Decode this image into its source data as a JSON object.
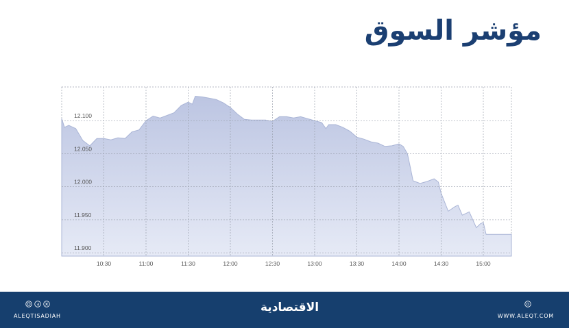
{
  "title": "مؤشر السوق",
  "chart_data": {
    "type": "area",
    "title": "مؤشر السوق",
    "xlabel": "",
    "ylabel": "",
    "ylim": [
      11.895,
      12.151
    ],
    "xlim": [
      "10:00",
      "15:20"
    ],
    "grid": true,
    "fill_color": "#c5cde6",
    "line_color": "#aab5d6",
    "x_ticks": [
      "10:30",
      "11:00",
      "11:30",
      "12:00",
      "12:30",
      "13:00",
      "13:30",
      "14:00",
      "14:30",
      "15:00"
    ],
    "y_ticks": [
      "11.900",
      "11.950",
      "12.000",
      "12.050",
      "12.100"
    ],
    "x": [
      "10:00",
      "10:02",
      "10:05",
      "10:10",
      "10:15",
      "10:20",
      "10:25",
      "10:30",
      "10:35",
      "10:40",
      "10:45",
      "10:50",
      "10:55",
      "11:00",
      "11:05",
      "11:10",
      "11:15",
      "11:20",
      "11:25",
      "11:30",
      "11:33",
      "11:35",
      "11:40",
      "11:45",
      "11:50",
      "11:55",
      "12:00",
      "12:05",
      "12:10",
      "12:15",
      "12:20",
      "12:25",
      "12:30",
      "12:35",
      "12:40",
      "12:45",
      "12:50",
      "12:55",
      "13:00",
      "13:05",
      "13:08",
      "13:10",
      "13:15",
      "13:20",
      "13:25",
      "13:30",
      "13:35",
      "13:40",
      "13:45",
      "13:50",
      "13:55",
      "14:00",
      "14:03",
      "14:06",
      "14:08",
      "14:10",
      "14:15",
      "14:20",
      "14:25",
      "14:28",
      "14:30",
      "14:35",
      "14:40",
      "14:42",
      "14:45",
      "14:50",
      "14:55",
      "14:58",
      "15:00",
      "15:02",
      "15:20"
    ],
    "values": [
      12.103,
      12.09,
      12.093,
      12.088,
      12.07,
      12.062,
      12.073,
      12.073,
      12.071,
      12.074,
      12.073,
      12.083,
      12.086,
      12.1,
      12.107,
      12.104,
      12.108,
      12.112,
      12.123,
      12.128,
      12.125,
      12.137,
      12.136,
      12.134,
      12.132,
      12.127,
      12.12,
      12.11,
      12.102,
      12.101,
      12.101,
      12.101,
      12.099,
      12.106,
      12.106,
      12.104,
      12.106,
      12.103,
      12.1,
      12.097,
      12.088,
      12.094,
      12.094,
      12.09,
      12.084,
      12.075,
      12.072,
      12.068,
      12.066,
      12.061,
      12.062,
      12.065,
      12.061,
      12.05,
      12.03,
      12.009,
      12.005,
      12.008,
      12.012,
      12.007,
      11.99,
      11.963,
      11.97,
      11.972,
      11.957,
      11.962,
      11.938,
      11.944,
      11.946,
      11.928,
      11.928
    ]
  },
  "footer": {
    "background": "#163f6e",
    "handle": "ALEQTISADIAH",
    "logo": "الاقتصادية",
    "website": "WWW.ALEQT.COM",
    "social_icons": [
      "instagram-icon",
      "facebook-icon",
      "x-icon"
    ],
    "web_icon": "globe-icon"
  }
}
